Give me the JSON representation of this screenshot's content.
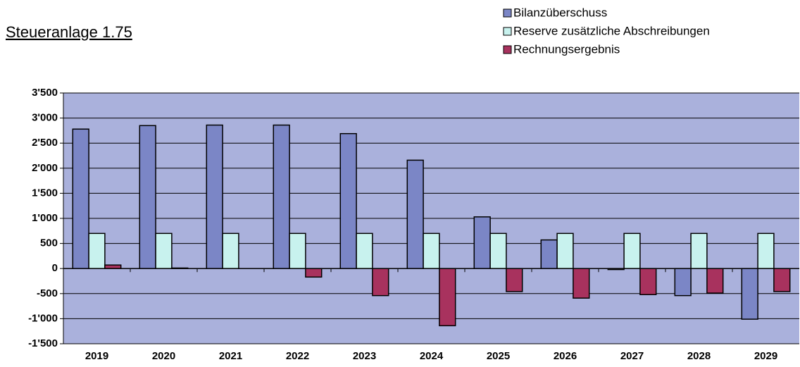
{
  "chart_data": {
    "type": "bar",
    "title": "Steueranlage 1.75",
    "categories": [
      "2019",
      "2020",
      "2021",
      "2022",
      "2023",
      "2024",
      "2025",
      "2026",
      "2027",
      "2028",
      "2029"
    ],
    "series": [
      {
        "name": "Bilanzüberschuss",
        "color": "#7b86c6",
        "values": [
          2780,
          2850,
          2860,
          2860,
          2690,
          2160,
          1030,
          570,
          -20,
          -540,
          -1010
        ]
      },
      {
        "name": "Reserve zusätzliche Abschreibungen",
        "color": "#c8f2ee",
        "values": [
          700,
          700,
          700,
          700,
          700,
          700,
          700,
          700,
          700,
          700,
          700
        ]
      },
      {
        "name": "Rechnungsergebnis",
        "color": "#a8325e",
        "values": [
          70,
          10,
          0,
          -170,
          -540,
          -1140,
          -460,
          -590,
          -520,
          -490,
          -460
        ]
      }
    ],
    "ylim": [
      -1500,
      3500
    ],
    "yticks": [
      {
        "value": -1500,
        "label": "-1'500"
      },
      {
        "value": -1000,
        "label": "-1'000"
      },
      -500,
      0,
      500,
      {
        "value": 1000,
        "label": "1'000"
      },
      {
        "value": 1500,
        "label": "1'500"
      },
      {
        "value": 2000,
        "label": "2'000"
      },
      {
        "value": 2500,
        "label": "2'500"
      },
      {
        "value": 3000,
        "label": "3'000"
      },
      {
        "value": 3500,
        "label": "3'500"
      }
    ],
    "grid": true,
    "legend": "top-right",
    "background": "#aab1dc"
  }
}
